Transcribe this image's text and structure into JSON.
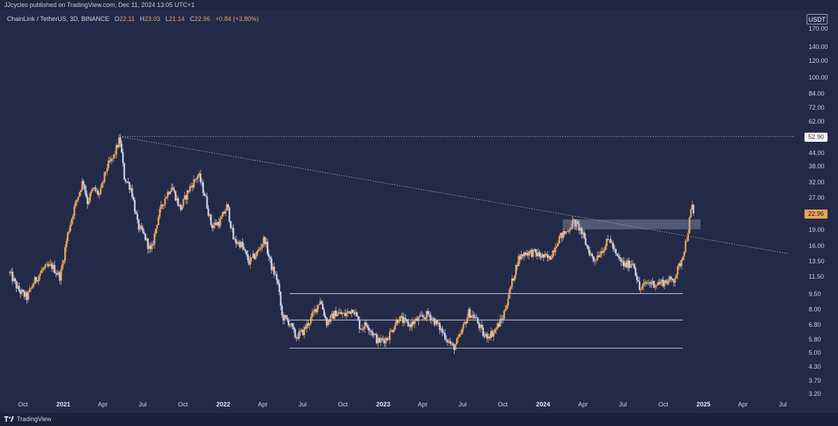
{
  "header": {
    "publisher_line": "JJcycles published on TradingView.com, Dec 11, 2024 13:05 UTC+1",
    "symbol_line": "ChainLink / TetherUS, 3D, BINANCE",
    "ohlc": [
      {
        "key": "O",
        "value": "22.11"
      },
      {
        "key": "H",
        "value": "23.03"
      },
      {
        "key": "L",
        "value": "21.14"
      },
      {
        "key": "C",
        "value": "22.96"
      }
    ],
    "change": "+0.84 (+3.80%)"
  },
  "price_axis": {
    "currency_badge": "USDT",
    "high_label": "52.90",
    "last_label": "22.96"
  },
  "footer": {
    "brand": "TradingView"
  },
  "colors": {
    "background": "#232a48",
    "up_candle": "#e8a35a",
    "down_candle": "#c7cfe6",
    "lines": "#d4d8e3"
  },
  "chart_data": {
    "type": "candlestick",
    "title": "ChainLink / TetherUS, 3D, BINANCE",
    "y_scale": "log",
    "ylim": [
      3.2,
      170
    ],
    "y_ticks": [
      170,
      140,
      120,
      100,
      84,
      72,
      62,
      52.9,
      44,
      38,
      32,
      27,
      22.96,
      19,
      16,
      13.5,
      11.5,
      9.5,
      8,
      6.8,
      5.8,
      5,
      4.3,
      3.7,
      3.2
    ],
    "y_tick_labels": [
      "170.00",
      "140.00",
      "120.00",
      "100.00",
      "84.00",
      "72.00",
      "62.00",
      "",
      "44.00",
      "38.00",
      "32.00",
      "27.00",
      "",
      "19.00",
      "16.00",
      "13.50",
      "11.50",
      "9.50",
      "8.00",
      "6.80",
      "5.80",
      "5.00",
      "4.30",
      "3.70",
      "3.20"
    ],
    "x_ticks": [
      {
        "label": "Oct",
        "date": "2020-10-01",
        "year": false
      },
      {
        "label": "2021",
        "date": "2021-01-01",
        "year": true
      },
      {
        "label": "Apr",
        "date": "2021-04-01",
        "year": false
      },
      {
        "label": "Jul",
        "date": "2021-07-01",
        "year": false
      },
      {
        "label": "Oct",
        "date": "2021-10-01",
        "year": false
      },
      {
        "label": "2022",
        "date": "2022-01-01",
        "year": true
      },
      {
        "label": "Apr",
        "date": "2022-04-01",
        "year": false
      },
      {
        "label": "Jul",
        "date": "2022-07-01",
        "year": false
      },
      {
        "label": "Oct",
        "date": "2022-10-01",
        "year": false
      },
      {
        "label": "2023",
        "date": "2023-01-01",
        "year": true
      },
      {
        "label": "Apr",
        "date": "2023-04-01",
        "year": false
      },
      {
        "label": "Jul",
        "date": "2023-07-01",
        "year": false
      },
      {
        "label": "Oct",
        "date": "2023-10-01",
        "year": false
      },
      {
        "label": "2024",
        "date": "2024-01-01",
        "year": true
      },
      {
        "label": "Apr",
        "date": "2024-04-01",
        "year": false
      },
      {
        "label": "Jul",
        "date": "2024-07-01",
        "year": false
      },
      {
        "label": "Oct",
        "date": "2024-10-01",
        "year": false
      },
      {
        "label": "2025",
        "date": "2025-01-01",
        "year": true
      },
      {
        "label": "Apr",
        "date": "2025-04-01",
        "year": false
      },
      {
        "label": "Jul",
        "date": "2025-07-01",
        "year": false
      }
    ],
    "close_path": [
      {
        "date": "2020-09-01",
        "price": 12.0
      },
      {
        "date": "2020-09-20",
        "price": 10.0
      },
      {
        "date": "2020-10-10",
        "price": 9.2
      },
      {
        "date": "2020-10-25",
        "price": 10.8
      },
      {
        "date": "2020-11-15",
        "price": 12.5
      },
      {
        "date": "2020-12-05",
        "price": 13.0
      },
      {
        "date": "2020-12-25",
        "price": 11.5
      },
      {
        "date": "2021-01-10",
        "price": 18.0
      },
      {
        "date": "2021-01-25",
        "price": 24.0
      },
      {
        "date": "2021-02-15",
        "price": 33.0
      },
      {
        "date": "2021-02-25",
        "price": 26.0
      },
      {
        "date": "2021-03-10",
        "price": 30.0
      },
      {
        "date": "2021-03-25",
        "price": 28.0
      },
      {
        "date": "2021-04-10",
        "price": 38.0
      },
      {
        "date": "2021-04-25",
        "price": 42.0
      },
      {
        "date": "2021-05-10",
        "price": 52.0
      },
      {
        "date": "2021-05-20",
        "price": 34.0
      },
      {
        "date": "2021-06-05",
        "price": 30.0
      },
      {
        "date": "2021-06-20",
        "price": 20.0
      },
      {
        "date": "2021-07-05",
        "price": 18.0
      },
      {
        "date": "2021-07-20",
        "price": 15.0
      },
      {
        "date": "2021-08-05",
        "price": 22.0
      },
      {
        "date": "2021-08-20",
        "price": 27.0
      },
      {
        "date": "2021-09-05",
        "price": 31.0
      },
      {
        "date": "2021-09-25",
        "price": 24.0
      },
      {
        "date": "2021-10-15",
        "price": 30.0
      },
      {
        "date": "2021-11-05",
        "price": 35.0
      },
      {
        "date": "2021-11-20",
        "price": 28.0
      },
      {
        "date": "2021-12-05",
        "price": 20.0
      },
      {
        "date": "2021-12-25",
        "price": 21.0
      },
      {
        "date": "2022-01-10",
        "price": 25.0
      },
      {
        "date": "2022-01-25",
        "price": 17.0
      },
      {
        "date": "2022-02-10",
        "price": 16.5
      },
      {
        "date": "2022-03-01",
        "price": 13.5
      },
      {
        "date": "2022-03-20",
        "price": 15.0
      },
      {
        "date": "2022-04-05",
        "price": 17.5
      },
      {
        "date": "2022-04-20",
        "price": 13.0
      },
      {
        "date": "2022-05-05",
        "price": 11.0
      },
      {
        "date": "2022-05-15",
        "price": 7.5
      },
      {
        "date": "2022-06-01",
        "price": 7.0
      },
      {
        "date": "2022-06-15",
        "price": 6.0
      },
      {
        "date": "2022-07-01",
        "price": 6.3
      },
      {
        "date": "2022-07-20",
        "price": 7.3
      },
      {
        "date": "2022-08-10",
        "price": 9.0
      },
      {
        "date": "2022-08-25",
        "price": 7.0
      },
      {
        "date": "2022-09-15",
        "price": 7.8
      },
      {
        "date": "2022-10-05",
        "price": 7.6
      },
      {
        "date": "2022-10-25",
        "price": 8.2
      },
      {
        "date": "2022-11-10",
        "price": 6.6
      },
      {
        "date": "2022-11-25",
        "price": 6.9
      },
      {
        "date": "2022-12-20",
        "price": 5.7
      },
      {
        "date": "2023-01-10",
        "price": 5.9
      },
      {
        "date": "2023-02-05",
        "price": 7.4
      },
      {
        "date": "2023-03-01",
        "price": 6.8
      },
      {
        "date": "2023-03-20",
        "price": 7.2
      },
      {
        "date": "2023-04-15",
        "price": 7.7
      },
      {
        "date": "2023-05-10",
        "price": 6.6
      },
      {
        "date": "2023-06-10",
        "price": 5.3
      },
      {
        "date": "2023-06-25",
        "price": 6.0
      },
      {
        "date": "2023-07-15",
        "price": 7.8
      },
      {
        "date": "2023-07-30",
        "price": 7.4
      },
      {
        "date": "2023-08-20",
        "price": 6.0
      },
      {
        "date": "2023-09-10",
        "price": 6.3
      },
      {
        "date": "2023-10-01",
        "price": 7.4
      },
      {
        "date": "2023-10-20",
        "price": 10.5
      },
      {
        "date": "2023-11-05",
        "price": 14.0
      },
      {
        "date": "2023-11-20",
        "price": 15.0
      },
      {
        "date": "2023-12-10",
        "price": 15.0
      },
      {
        "date": "2023-12-25",
        "price": 14.5
      },
      {
        "date": "2024-01-15",
        "price": 14.0
      },
      {
        "date": "2024-02-05",
        "price": 17.5
      },
      {
        "date": "2024-02-25",
        "price": 19.0
      },
      {
        "date": "2024-03-10",
        "price": 21.0
      },
      {
        "date": "2024-03-25",
        "price": 19.5
      },
      {
        "date": "2024-04-10",
        "price": 16.0
      },
      {
        "date": "2024-04-25",
        "price": 13.8
      },
      {
        "date": "2024-05-15",
        "price": 15.5
      },
      {
        "date": "2024-06-01",
        "price": 17.5
      },
      {
        "date": "2024-06-15",
        "price": 14.5
      },
      {
        "date": "2024-07-05",
        "price": 13.0
      },
      {
        "date": "2024-07-25",
        "price": 13.5
      },
      {
        "date": "2024-08-08",
        "price": 10.0
      },
      {
        "date": "2024-08-25",
        "price": 10.8
      },
      {
        "date": "2024-09-15",
        "price": 10.7
      },
      {
        "date": "2024-10-10",
        "price": 11.0
      },
      {
        "date": "2024-10-25",
        "price": 11.2
      },
      {
        "date": "2024-11-10",
        "price": 13.5
      },
      {
        "date": "2024-11-25",
        "price": 18.0
      },
      {
        "date": "2024-12-05",
        "price": 25.0
      },
      {
        "date": "2024-12-11",
        "price": 22.96
      }
    ],
    "annotations": [
      {
        "kind": "hline",
        "label": "52.90",
        "price": 52.9,
        "from": "2021-05-10",
        "to": "2025-10-01",
        "style": "dotted"
      },
      {
        "kind": "trendline",
        "from": {
          "date": "2021-05-10",
          "price": 52.9
        },
        "to": {
          "date": "2025-07-15",
          "price": 14.8
        },
        "style": "dotted"
      },
      {
        "kind": "hline",
        "price": 9.6,
        "from": "2022-06-01",
        "to": "2024-11-15",
        "style": "solid"
      },
      {
        "kind": "hline",
        "price": 7.2,
        "from": "2022-06-01",
        "to": "2024-11-15",
        "style": "solid"
      },
      {
        "kind": "hline",
        "price": 5.3,
        "from": "2022-06-01",
        "to": "2024-11-15",
        "style": "solid"
      },
      {
        "kind": "zone",
        "price_top": 21.5,
        "price_bottom": 19.3,
        "from": "2024-02-15",
        "to": "2024-12-25"
      }
    ]
  }
}
